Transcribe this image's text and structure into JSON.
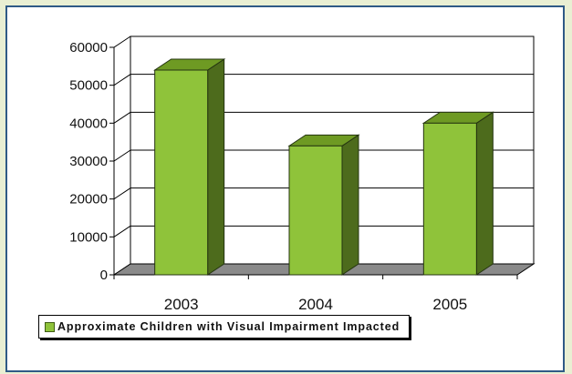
{
  "chart_data": {
    "type": "bar",
    "style": "3d-column",
    "categories": [
      "2003",
      "2004",
      "2005"
    ],
    "series": [
      {
        "name": "Approximate Children with Visual Impairment Impacted",
        "values": [
          54000,
          34000,
          40000
        ]
      }
    ],
    "yticks": [
      "0",
      "10000",
      "20000",
      "30000",
      "40000",
      "50000",
      "60000"
    ],
    "ylim": [
      0,
      60000
    ],
    "grid": true,
    "legend_position": "bottom",
    "colors": {
      "bar_front": "#8fc33a",
      "bar_top": "#6e9a23",
      "bar_side": "#4d6b1c",
      "floor": "#8a8a8a",
      "page_background": "#e9efd3",
      "frame_border": "#2f5a86"
    }
  }
}
